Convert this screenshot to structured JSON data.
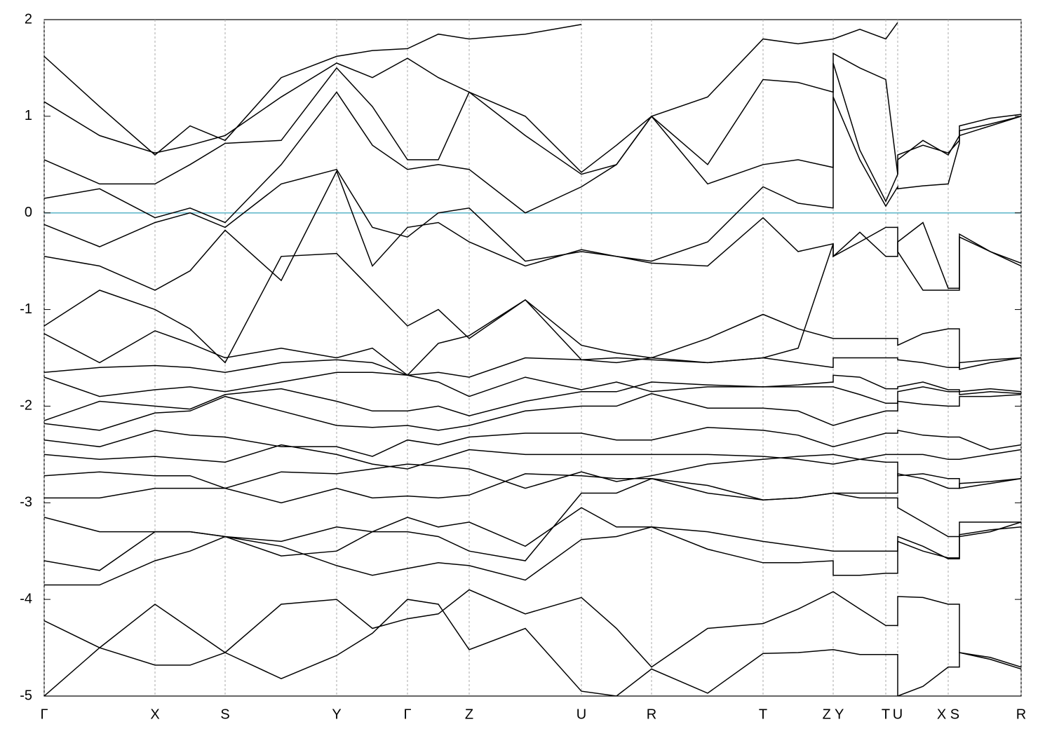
{
  "chart_data": {
    "type": "line",
    "line_color": "#000000",
    "reference_line": {
      "y": 0,
      "color": "#5ab4c8"
    },
    "grid": true,
    "xlim": [
      0,
      1393
    ],
    "ylim": [
      -5,
      2
    ],
    "yticks": [
      -5,
      -4,
      -3,
      -2,
      -1,
      0,
      1,
      2
    ],
    "xticks": [
      {
        "value": 0,
        "label": "Γ"
      },
      {
        "value": 158,
        "label": "X"
      },
      {
        "value": 258,
        "label": "S"
      },
      {
        "value": 417,
        "label": "Y"
      },
      {
        "value": 518,
        "label": "Γ"
      },
      {
        "value": 606,
        "label": "Z"
      },
      {
        "value": 766,
        "label": "U"
      },
      {
        "value": 866,
        "label": "R"
      },
      {
        "value": 1025,
        "label": "T"
      },
      {
        "value": 1125,
        "label": "Z Y"
      },
      {
        "value": 1200,
        "label": "T"
      },
      {
        "value": 1217,
        "label": "U"
      },
      {
        "value": 1289,
        "label": "X S"
      },
      {
        "value": 1393,
        "label": "R"
      }
    ],
    "x": [
      0,
      79,
      158,
      208,
      258,
      338,
      417,
      468,
      518,
      562,
      606,
      686,
      766,
      816,
      866,
      946,
      1025,
      1075,
      1125,
      1125,
      1163,
      1200,
      1217,
      1217,
      1253,
      1289,
      1305,
      1305,
      1349,
      1393
    ],
    "series": [
      {
        "values": [
          -5.0,
          -4.5,
          -4.05,
          -4.3,
          -4.55,
          -4.05,
          -4.0,
          -4.3,
          -4.2,
          -4.15,
          -3.9,
          -4.15,
          -3.98,
          -4.3,
          -4.7,
          -4.3,
          -4.25,
          -4.1,
          -3.92,
          -3.92,
          -4.1,
          -4.27,
          -4.27,
          -3.97,
          -3.98,
          -4.05,
          -4.05,
          -4.55,
          -4.6,
          -4.7
        ]
      },
      {
        "values": [
          -4.22,
          -4.5,
          -4.68,
          -4.68,
          -4.55,
          -4.82,
          -4.58,
          -4.35,
          -4.0,
          -4.05,
          -4.52,
          -4.3,
          -4.95,
          -5.0,
          -4.72,
          -4.97,
          -4.56,
          -4.55,
          -4.52,
          -4.52,
          -4.57,
          -4.57,
          -4.57,
          -5.0,
          -4.9,
          -4.7,
          -4.7,
          -4.55,
          -4.62,
          -4.72
        ]
      },
      {
        "values": [
          -3.85,
          -3.85,
          -3.6,
          -3.5,
          -3.35,
          -3.55,
          -3.5,
          -3.3,
          -3.15,
          -3.25,
          -3.2,
          -3.45,
          -3.05,
          -3.25,
          -3.25,
          -3.3,
          -3.4,
          -3.45,
          -3.5,
          -3.5,
          -3.5,
          -3.5,
          -3.5,
          -3.35,
          -3.45,
          -3.58,
          -3.58,
          -3.33,
          -3.28,
          -3.25
        ]
      },
      {
        "values": [
          -3.6,
          -3.7,
          -3.3,
          -3.3,
          -3.35,
          -3.45,
          -3.65,
          -3.75,
          -3.68,
          -3.62,
          -3.65,
          -3.8,
          -3.38,
          -3.35,
          -3.25,
          -3.48,
          -3.62,
          -3.62,
          -3.6,
          -3.75,
          -3.75,
          -3.73,
          -3.73,
          -3.4,
          -3.5,
          -3.57,
          -3.57,
          -3.35,
          -3.3,
          -3.2
        ]
      },
      {
        "values": [
          -3.15,
          -3.3,
          -3.3,
          -3.3,
          -3.35,
          -3.4,
          -3.25,
          -3.3,
          -3.3,
          -3.35,
          -3.5,
          -3.6,
          -2.9,
          -2.9,
          -2.75,
          -2.82,
          -2.97,
          -2.95,
          -2.9,
          -2.9,
          -2.95,
          -2.95,
          -2.95,
          -3.05,
          -3.2,
          -3.35,
          -3.35,
          -3.2,
          -3.2,
          -3.2
        ]
      },
      {
        "values": [
          -2.95,
          -2.95,
          -2.85,
          -2.85,
          -2.85,
          -3.0,
          -2.85,
          -2.95,
          -2.93,
          -2.95,
          -2.92,
          -2.7,
          -2.72,
          -2.75,
          -2.75,
          -2.9,
          -2.97,
          -2.95,
          -2.9,
          -2.9,
          -2.9,
          -2.9,
          -2.9,
          -2.7,
          -2.75,
          -2.85,
          -2.85,
          -2.8,
          -2.78,
          -2.75
        ]
      },
      {
        "values": [
          -2.72,
          -2.68,
          -2.72,
          -2.72,
          -2.85,
          -2.68,
          -2.7,
          -2.65,
          -2.6,
          -2.62,
          -2.65,
          -2.85,
          -2.68,
          -2.78,
          -2.72,
          -2.6,
          -2.55,
          -2.52,
          -2.5,
          -2.5,
          -2.55,
          -2.58,
          -2.58,
          -2.72,
          -2.7,
          -2.75,
          -2.75,
          -2.85,
          -2.8,
          -2.75
        ]
      },
      {
        "values": [
          -2.5,
          -2.55,
          -2.52,
          -2.55,
          -2.58,
          -2.4,
          -2.5,
          -2.6,
          -2.65,
          -2.55,
          -2.45,
          -2.5,
          -2.5,
          -2.5,
          -2.5,
          -2.5,
          -2.52,
          -2.55,
          -2.6,
          -2.6,
          -2.55,
          -2.5,
          -2.5,
          -2.5,
          -2.5,
          -2.55,
          -2.55,
          -2.55,
          -2.5,
          -2.45
        ]
      },
      {
        "values": [
          -2.35,
          -2.42,
          -2.25,
          -2.3,
          -2.32,
          -2.42,
          -2.42,
          -2.52,
          -2.35,
          -2.4,
          -2.32,
          -2.28,
          -2.28,
          -2.35,
          -2.35,
          -2.22,
          -2.25,
          -2.3,
          -2.42,
          -2.42,
          -2.35,
          -2.28,
          -2.28,
          -2.25,
          -2.3,
          -2.32,
          -2.32,
          -2.32,
          -2.45,
          -2.4
        ]
      },
      {
        "values": [
          -2.18,
          -2.25,
          -2.07,
          -2.05,
          -1.9,
          -2.05,
          -2.2,
          -2.22,
          -2.2,
          -2.25,
          -2.2,
          -2.05,
          -2.0,
          -2.0,
          -1.87,
          -2.02,
          -2.02,
          -2.05,
          -2.2,
          -2.2,
          -2.12,
          -2.05,
          -2.05,
          -1.95,
          -1.98,
          -2.0,
          -2.0,
          -1.9,
          -1.9,
          -1.88
        ]
      },
      {
        "values": [
          -2.15,
          -1.95,
          -2.0,
          -2.03,
          -1.88,
          -1.82,
          -1.95,
          -2.05,
          -2.05,
          -2.0,
          -2.1,
          -1.95,
          -1.85,
          -1.85,
          -1.75,
          -1.78,
          -1.8,
          -1.8,
          -1.8,
          -1.8,
          -1.88,
          -1.97,
          -1.97,
          -1.85,
          -1.8,
          -1.85,
          -1.85,
          -1.85,
          -1.82,
          -1.85
        ]
      },
      {
        "values": [
          -1.7,
          -1.9,
          -1.83,
          -1.8,
          -1.85,
          -1.75,
          -1.65,
          -1.65,
          -1.68,
          -1.75,
          -1.9,
          -1.7,
          -1.83,
          -1.75,
          -1.85,
          -1.8,
          -1.8,
          -1.78,
          -1.75,
          -1.68,
          -1.7,
          -1.82,
          -1.82,
          -1.8,
          -1.75,
          -1.83,
          -1.83,
          -1.88,
          -1.85,
          -1.87
        ]
      },
      {
        "values": [
          -1.65,
          -1.6,
          -1.58,
          -1.6,
          -1.65,
          -1.55,
          -1.52,
          -1.55,
          -1.68,
          -1.65,
          -1.7,
          -1.5,
          -1.52,
          -1.5,
          -1.52,
          -1.55,
          -1.5,
          -1.55,
          -1.6,
          -1.5,
          -1.5,
          -1.5,
          -1.5,
          -1.52,
          -1.55,
          -1.6,
          -1.6,
          -1.55,
          -1.52,
          -1.5
        ]
      },
      {
        "values": [
          -1.25,
          -1.55,
          -1.22,
          -1.35,
          -1.5,
          -1.4,
          -1.5,
          -1.4,
          -1.68,
          -1.35,
          -1.27,
          -0.9,
          -1.37,
          -1.45,
          -1.5,
          -1.3,
          -1.05,
          -1.2,
          -1.3,
          -1.3,
          -1.3,
          -1.3,
          -1.3,
          -1.37,
          -1.25,
          -1.2,
          -1.2,
          -1.62,
          -1.55,
          -1.5
        ]
      },
      {
        "values": [
          -1.17,
          -0.8,
          -1.0,
          -1.2,
          -1.55,
          -0.45,
          -0.42,
          -0.8,
          -1.17,
          -1.0,
          -1.3,
          -0.9,
          -1.52,
          -1.55,
          -1.5,
          -1.55,
          -1.5,
          -1.4,
          -0.32,
          -0.45,
          -0.3,
          -0.15,
          -0.15,
          -0.4,
          -0.8,
          -0.8,
          -0.8,
          -0.25,
          -0.4,
          -0.55
        ]
      },
      {
        "values": [
          -0.45,
          -0.55,
          -0.8,
          -0.6,
          -0.18,
          -0.7,
          0.43,
          -0.55,
          -0.15,
          -0.1,
          -0.3,
          -0.55,
          -0.38,
          -0.45,
          -0.52,
          -0.55,
          -0.05,
          -0.4,
          -0.32,
          -0.45,
          -0.2,
          -0.45,
          -0.45,
          -0.3,
          -0.1,
          -0.78,
          -0.78,
          -0.22,
          -0.4,
          -0.52
        ]
      },
      {
        "values": [
          -0.12,
          -0.35,
          -0.1,
          0.0,
          -0.15,
          0.3,
          0.45,
          -0.15,
          -0.25,
          0.0,
          0.05,
          -0.5,
          -0.4,
          -0.45,
          -0.5,
          -0.3,
          0.27,
          0.1,
          0.05,
          1.2,
          0.55,
          0.07,
          0.27,
          0.25,
          0.28,
          0.3,
          0.72,
          0.8,
          0.9,
          1.0
        ]
      },
      {
        "values": [
          0.15,
          0.25,
          -0.05,
          0.05,
          -0.1,
          0.5,
          1.25,
          0.7,
          0.45,
          0.5,
          0.45,
          0.0,
          0.27,
          0.5,
          1.0,
          0.3,
          0.5,
          0.55,
          0.47,
          1.55,
          0.65,
          0.12,
          0.4,
          0.6,
          0.7,
          0.62,
          0.75,
          0.85,
          0.92,
          1.0
        ]
      },
      {
        "values": [
          0.55,
          0.3,
          0.3,
          0.5,
          0.72,
          0.75,
          1.5,
          1.1,
          0.55,
          0.55,
          1.25,
          0.8,
          0.4,
          0.5,
          1.0,
          0.5,
          1.38,
          1.35,
          1.25,
          1.65,
          1.5,
          1.38,
          0.4,
          0.55,
          0.75,
          0.6,
          0.8,
          0.9,
          0.98,
          1.02
        ]
      },
      {
        "values": [
          1.15,
          0.8,
          0.62,
          0.7,
          0.8,
          1.2,
          1.55,
          1.4,
          1.6,
          1.4,
          1.25,
          1.0,
          0.42,
          0.7,
          1.0,
          1.2,
          1.8,
          1.75,
          1.8,
          1.8,
          1.9,
          1.8,
          1.97,
          null,
          null,
          null,
          null,
          null,
          null,
          null
        ]
      },
      {
        "values": [
          1.62,
          1.1,
          0.6,
          0.9,
          0.75,
          1.4,
          1.62,
          1.68,
          1.7,
          1.85,
          1.8,
          1.85,
          1.95,
          null,
          null,
          null,
          null,
          null,
          null,
          null,
          null,
          null,
          null,
          null,
          null,
          null,
          null,
          null,
          null,
          null
        ]
      }
    ]
  }
}
